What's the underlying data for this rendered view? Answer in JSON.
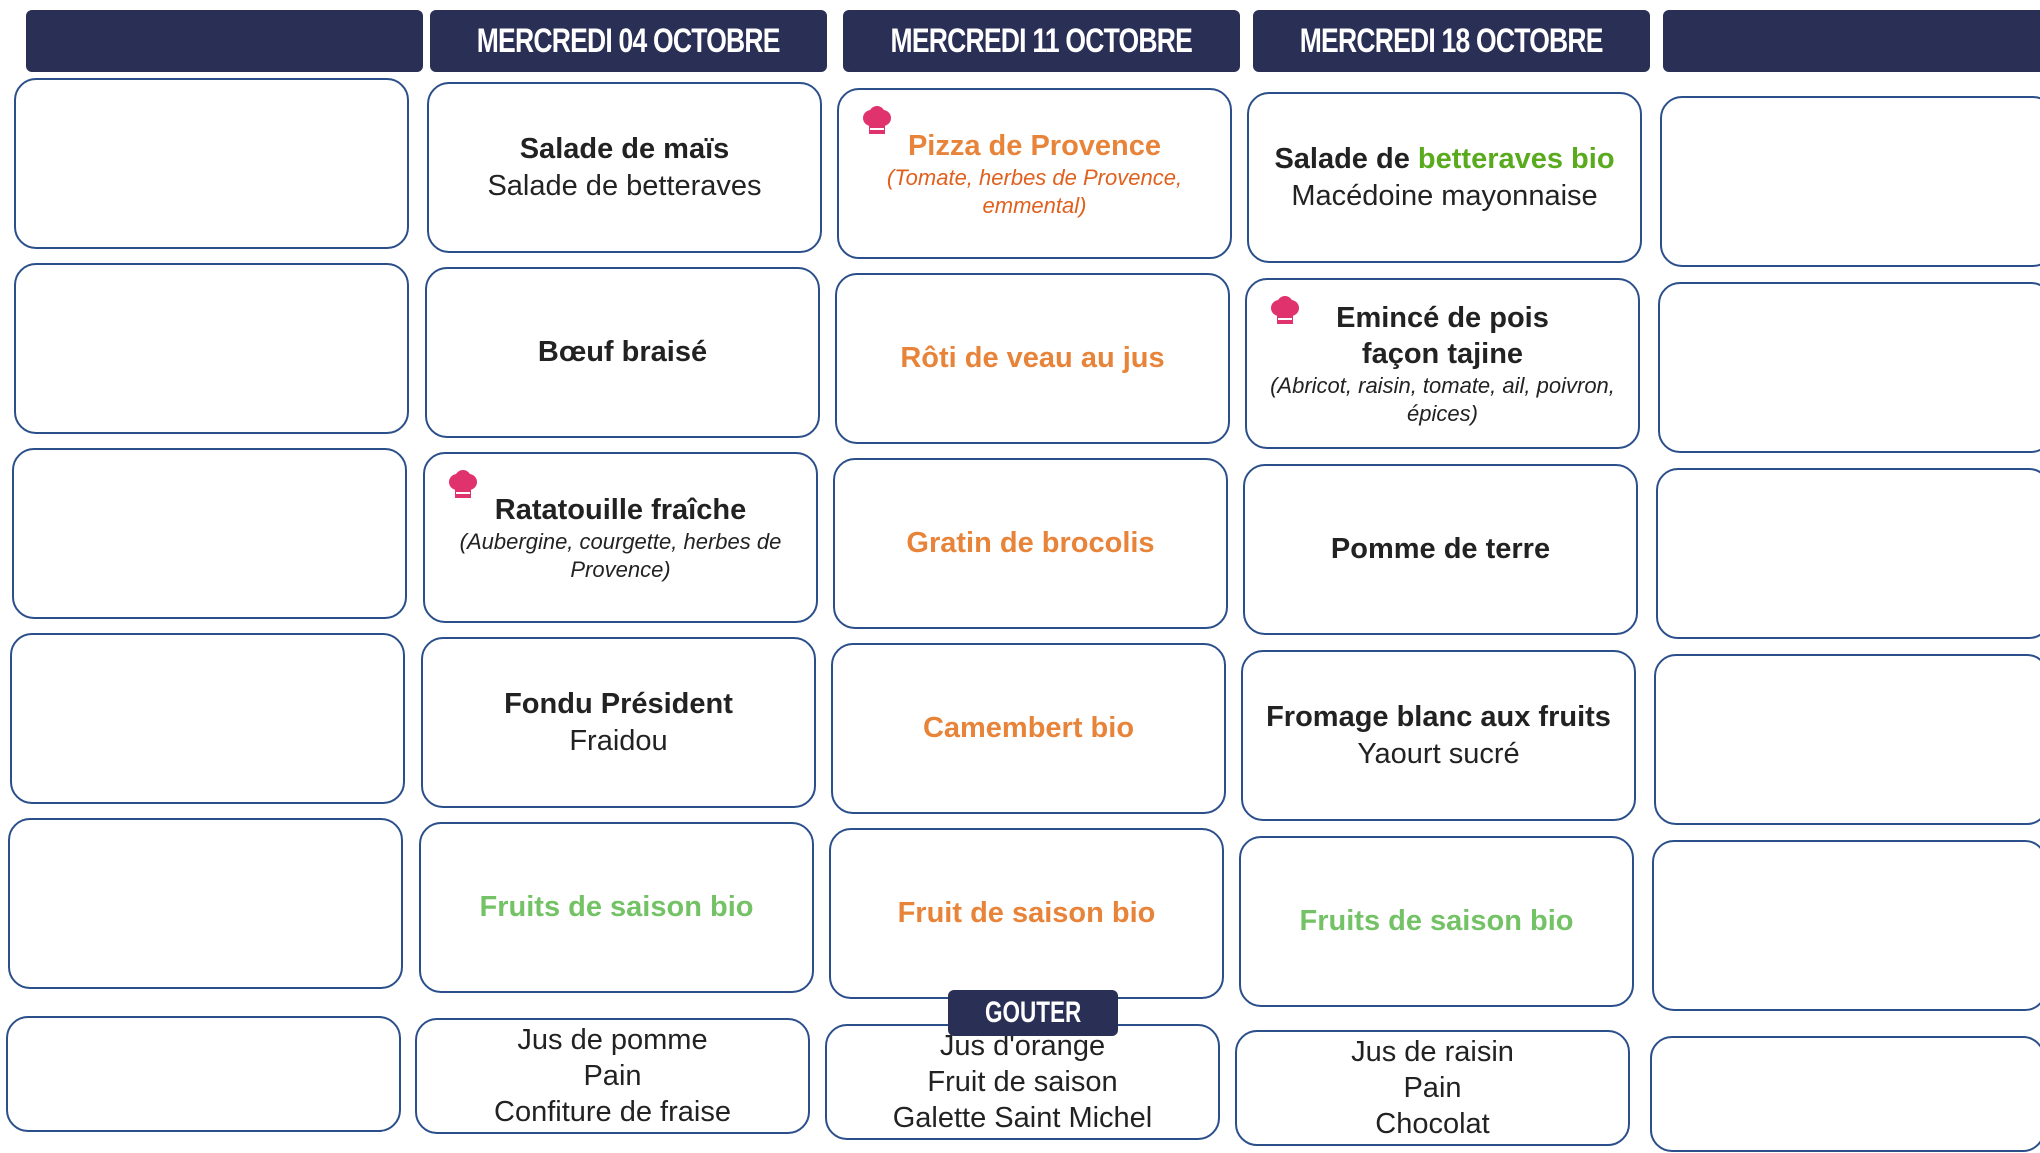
{
  "headers": [
    "MERCREDI 04 OCTOBRE",
    "MERCREDI 11 OCTOBRE",
    "MERCREDI 18 OCTOBRE"
  ],
  "gouter": "GOUTER",
  "days": [
    [
      [
        "Salade de maïs",
        "Salade de betteraves"
      ],
      [
        "Bœuf braisé"
      ],
      [
        "Ratatouille fraîche",
        "(Aubergine, courgette, herbes de Provence)"
      ],
      [
        "Fondu Président",
        "Fraidou"
      ],
      [
        "Fruits de saison bio"
      ],
      [
        "Jus de pomme",
        "Pain",
        "Confiture de fraise"
      ]
    ],
    [
      [
        "Pizza de Provence",
        "(Tomate, herbes de Provence, emmental)"
      ],
      [
        "Rôti de veau au jus"
      ],
      [
        "Gratin de brocolis"
      ],
      [
        "Camembert bio"
      ],
      [
        "Fruit de saison bio"
      ],
      [
        "Jus d'orange",
        "Fruit de saison",
        "Galette Saint Michel"
      ]
    ],
    [
      [
        "Salade de ",
        "betteraves bio",
        "Macédoine mayonnaise"
      ],
      [
        "Emincé de pois façon tajine",
        "(Abricot, raisin, tomate, ail, poivron, épices)"
      ],
      [
        "Pomme de terre"
      ],
      [
        "Fromage blanc aux fruits",
        "Yaourt sucré"
      ],
      [
        "Fruits de saison bio"
      ],
      [
        "Jus de raisin",
        "Pain",
        "Chocolat"
      ]
    ]
  ]
}
